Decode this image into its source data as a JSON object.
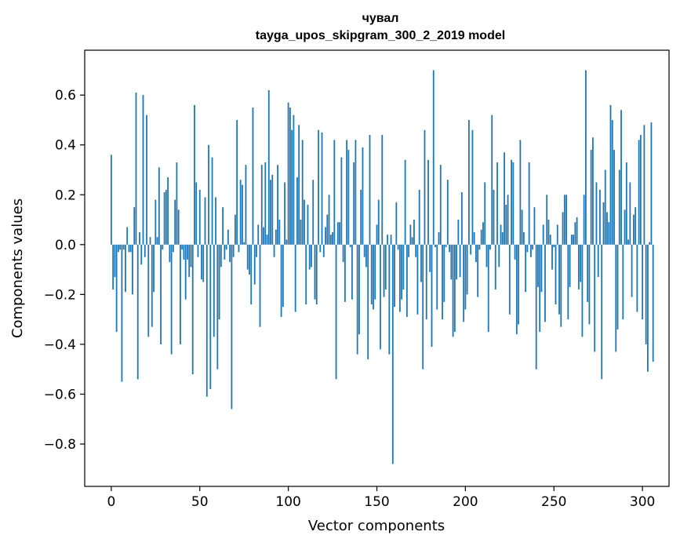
{
  "chart_data": {
    "type": "bar",
    "title": "чувал",
    "subtitle": "tayga_upos_skipgram_300_2_2019 model",
    "xlabel": "Vector components",
    "ylabel": "Components values",
    "xlim": [
      -15,
      315
    ],
    "ylim": [
      -0.97,
      0.78
    ],
    "xticks": [
      0,
      50,
      100,
      150,
      200,
      250,
      300
    ],
    "yticks": [
      -0.8,
      -0.6,
      -0.4,
      -0.2,
      0.0,
      0.2,
      0.4,
      0.6
    ],
    "xtick_labels": [
      "0",
      "50",
      "100",
      "150",
      "200",
      "250",
      "300"
    ],
    "ytick_labels": [
      "−0.8",
      "−0.6",
      "−0.4",
      "−0.2",
      "0.0",
      "0.2",
      "0.4",
      "0.6"
    ],
    "bar_color": "#1f77b4",
    "values": [
      0.36,
      -0.18,
      -0.13,
      -0.35,
      -0.03,
      -0.02,
      -0.55,
      -0.02,
      -0.19,
      0.07,
      -0.03,
      -0.03,
      -0.2,
      0.15,
      0.61,
      -0.54,
      0.05,
      -0.08,
      0.6,
      -0.05,
      0.52,
      -0.37,
      0.03,
      -0.33,
      -0.19,
      0.18,
      0.03,
      0.31,
      -0.4,
      -0.02,
      0.21,
      0.22,
      0.27,
      -0.07,
      -0.44,
      -0.03,
      0.18,
      0.33,
      0.14,
      -0.4,
      -0.02,
      -0.06,
      -0.22,
      -0.06,
      -0.13,
      -0.09,
      -0.52,
      0.56,
      0.25,
      -0.05,
      0.22,
      -0.14,
      -0.15,
      0.19,
      -0.61,
      0.4,
      -0.58,
      0.35,
      -0.37,
      0.19,
      -0.5,
      -0.3,
      -0.09,
      0.15,
      -0.06,
      -0.02,
      0.06,
      -0.07,
      -0.66,
      -0.05,
      0.12,
      0.5,
      -0.03,
      0.26,
      0.24,
      0.01,
      0.32,
      -0.1,
      -0.12,
      -0.24,
      0.55,
      -0.16,
      -0.05,
      0.08,
      -0.33,
      0.32,
      0.07,
      0.33,
      0.04,
      0.62,
      0.26,
      0.28,
      -0.05,
      0.06,
      0.32,
      0.1,
      -0.29,
      -0.25,
      0.25,
      0.02,
      0.57,
      0.55,
      0.46,
      0.52,
      -0.27,
      0.27,
      0.48,
      0.1,
      0.42,
      0.18,
      -0.24,
      0.16,
      -0.1,
      -0.09,
      0.26,
      -0.22,
      -0.24,
      0.46,
      -0.03,
      0.45,
      -0.05,
      0.07,
      0.12,
      0.2,
      0.04,
      0.05,
      0.42,
      -0.54,
      0.09,
      0.09,
      0.35,
      -0.07,
      -0.23,
      0.42,
      0.38,
      -0.01,
      -0.22,
      0.33,
      0.42,
      -0.44,
      -0.36,
      0.22,
      0.39,
      -0.05,
      -0.09,
      -0.46,
      0.44,
      -0.24,
      -0.26,
      -0.22,
      0.08,
      0.18,
      -0.42,
      0.44,
      -0.21,
      -0.18,
      0.04,
      -0.44,
      0.04,
      -0.88,
      -0.25,
      0.17,
      -0.02,
      -0.27,
      -0.22,
      -0.18,
      0.34,
      -0.29,
      -0.05,
      0.08,
      0.03,
      0.1,
      -0.05,
      -0.28,
      0.22,
      -0.15,
      -0.5,
      0.46,
      -0.3,
      0.34,
      -0.11,
      -0.41,
      0.7,
      -0.01,
      -0.26,
      0.05,
      0.32,
      -0.3,
      -0.23,
      -0.01,
      0.26,
      -0.03,
      -0.14,
      -0.37,
      -0.35,
      -0.14,
      0.1,
      -0.13,
      0.21,
      -0.31,
      -0.26,
      -0.2,
      0.5,
      -0.04,
      0.46,
      0.05,
      -0.07,
      -0.21,
      -0.02,
      0.06,
      0.09,
      0.25,
      -0.09,
      -0.35,
      -0.02,
      0.52,
      0.22,
      -0.18,
      0.33,
      -0.09,
      0.08,
      0.05,
      0.37,
      0.16,
      0.2,
      -0.28,
      0.34,
      0.33,
      -0.06,
      -0.36,
      -0.32,
      0.42,
      0.14,
      0.05,
      -0.19,
      -0.03,
      0.33,
      -0.05,
      -0.02,
      0.15,
      -0.5,
      -0.17,
      -0.35,
      -0.19,
      0.08,
      -0.31,
      0.2,
      0.1,
      0.04,
      -0.1,
      -0.01,
      -0.24,
      0.08,
      -0.28,
      -0.33,
      0.13,
      0.2,
      0.2,
      -0.3,
      -0.17,
      0.04,
      0.04,
      0.09,
      0.11,
      -0.18,
      -0.15,
      -0.37,
      0.2,
      0.7,
      -0.23,
      -0.32,
      0.38,
      0.43,
      -0.43,
      0.25,
      -0.13,
      0.22,
      -0.54,
      0.17,
      0.3,
      0.13,
      0.09,
      0.56,
      0.5,
      0.38,
      -0.43,
      -0.34,
      0.3,
      0.54,
      -0.3,
      0.14,
      0.33,
      0.02,
      0.25,
      -0.21,
      0.12,
      0.15,
      -0.27,
      0.42,
      0.44,
      -0.3,
      0.48,
      -0.4,
      -0.51,
      0.01,
      0.49,
      -0.47
    ]
  }
}
